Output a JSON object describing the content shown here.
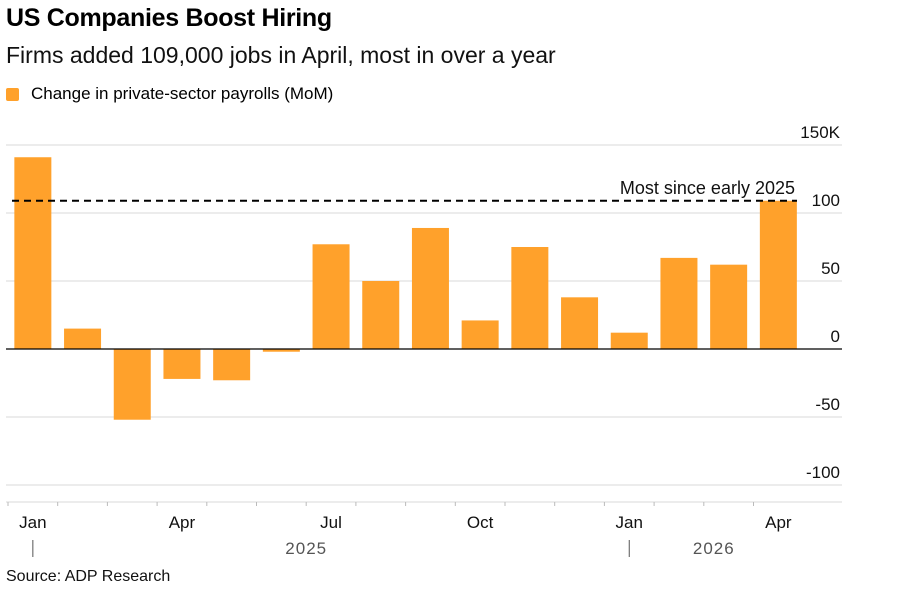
{
  "header": {
    "title": "US Companies Boost Hiring",
    "subtitle": "Firms added 109,000 jobs in April, most in over a year"
  },
  "legend": {
    "label": "Change in private-sector payrolls (MoM)"
  },
  "footer": {
    "source": "Source: ADP Research"
  },
  "colors": {
    "bar": "#FFA12B",
    "grid": "#D9D9D9",
    "axis": "#000000"
  },
  "chart_data": {
    "type": "bar",
    "categories": [
      "Jan 2025",
      "Feb 2025",
      "Mar 2025",
      "Apr 2025",
      "May 2025",
      "Jun 2025",
      "Jul 2025",
      "Aug 2025",
      "Sep 2025",
      "Oct 2025",
      "Nov 2025",
      "Dec 2025",
      "Jan 2026",
      "Feb 2026",
      "Mar 2026",
      "Apr 2026"
    ],
    "series": [
      {
        "name": "Change in private-sector payrolls (MoM)",
        "values": [
          141,
          15,
          -52,
          -22,
          -23,
          -2,
          77,
          50,
          89,
          21,
          75,
          38,
          12,
          67,
          62,
          109
        ]
      }
    ],
    "x_tick_labels": [
      {
        "index": 0,
        "label": "Jan"
      },
      {
        "index": 3,
        "label": "Apr"
      },
      {
        "index": 6,
        "label": "Jul"
      },
      {
        "index": 9,
        "label": "Oct"
      },
      {
        "index": 12,
        "label": "Jan"
      },
      {
        "index": 15,
        "label": "Apr"
      }
    ],
    "years": [
      {
        "label": "2025",
        "start_index": 0,
        "end_index": 11
      },
      {
        "label": "2026",
        "start_index": 12,
        "end_index": 15
      }
    ],
    "y_ticks": [
      {
        "value": 150,
        "label": "150K"
      },
      {
        "value": 100,
        "label": "100"
      },
      {
        "value": 50,
        "label": "50"
      },
      {
        "value": 0,
        "label": "0"
      },
      {
        "value": -50,
        "label": "-50"
      },
      {
        "value": -100,
        "label": "-100"
      }
    ],
    "ylim": [
      -100,
      150
    ],
    "axis_side": "right",
    "grid": true,
    "reference_line": {
      "value": 109,
      "label": "Most since early 2025",
      "style": "dashed"
    },
    "legend_position": "top-left"
  }
}
